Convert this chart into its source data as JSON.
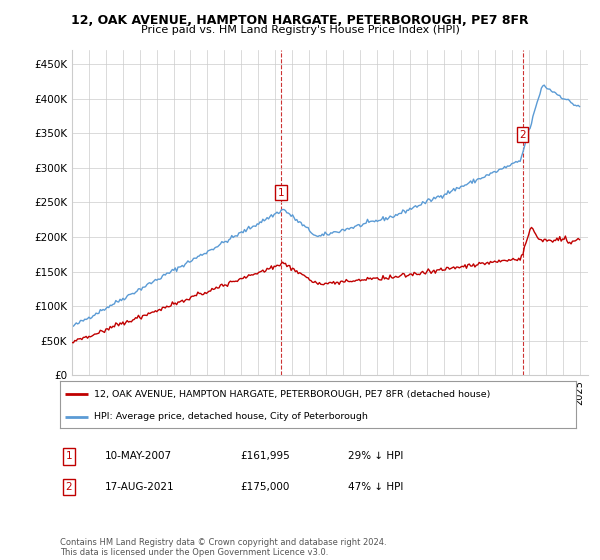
{
  "title": "12, OAK AVENUE, HAMPTON HARGATE, PETERBOROUGH, PE7 8FR",
  "subtitle": "Price paid vs. HM Land Registry's House Price Index (HPI)",
  "ylim": [
    0,
    470000
  ],
  "yticks": [
    0,
    50000,
    100000,
    150000,
    200000,
    250000,
    300000,
    350000,
    400000,
    450000
  ],
  "ytick_labels": [
    "£0",
    "£50K",
    "£100K",
    "£150K",
    "£200K",
    "£250K",
    "£300K",
    "£350K",
    "£400K",
    "£450K"
  ],
  "hpi_color": "#5B9BD5",
  "sale_color": "#C00000",
  "sale1_year_f": 2007.37,
  "sale1_price": 161995,
  "sale1_date": "10-MAY-2007",
  "sale1_label": "29% ↓ HPI",
  "sale2_year_f": 2021.63,
  "sale2_price": 175000,
  "sale2_date": "17-AUG-2021",
  "sale2_label": "47% ↓ HPI",
  "legend_line1": "12, OAK AVENUE, HAMPTON HARGATE, PETERBOROUGH, PE7 8FR (detached house)",
  "legend_line2": "HPI: Average price, detached house, City of Peterborough",
  "footnote": "Contains HM Land Registry data © Crown copyright and database right 2024.\nThis data is licensed under the Open Government Licence v3.0.",
  "background_color": "#ffffff",
  "grid_color": "#cccccc"
}
